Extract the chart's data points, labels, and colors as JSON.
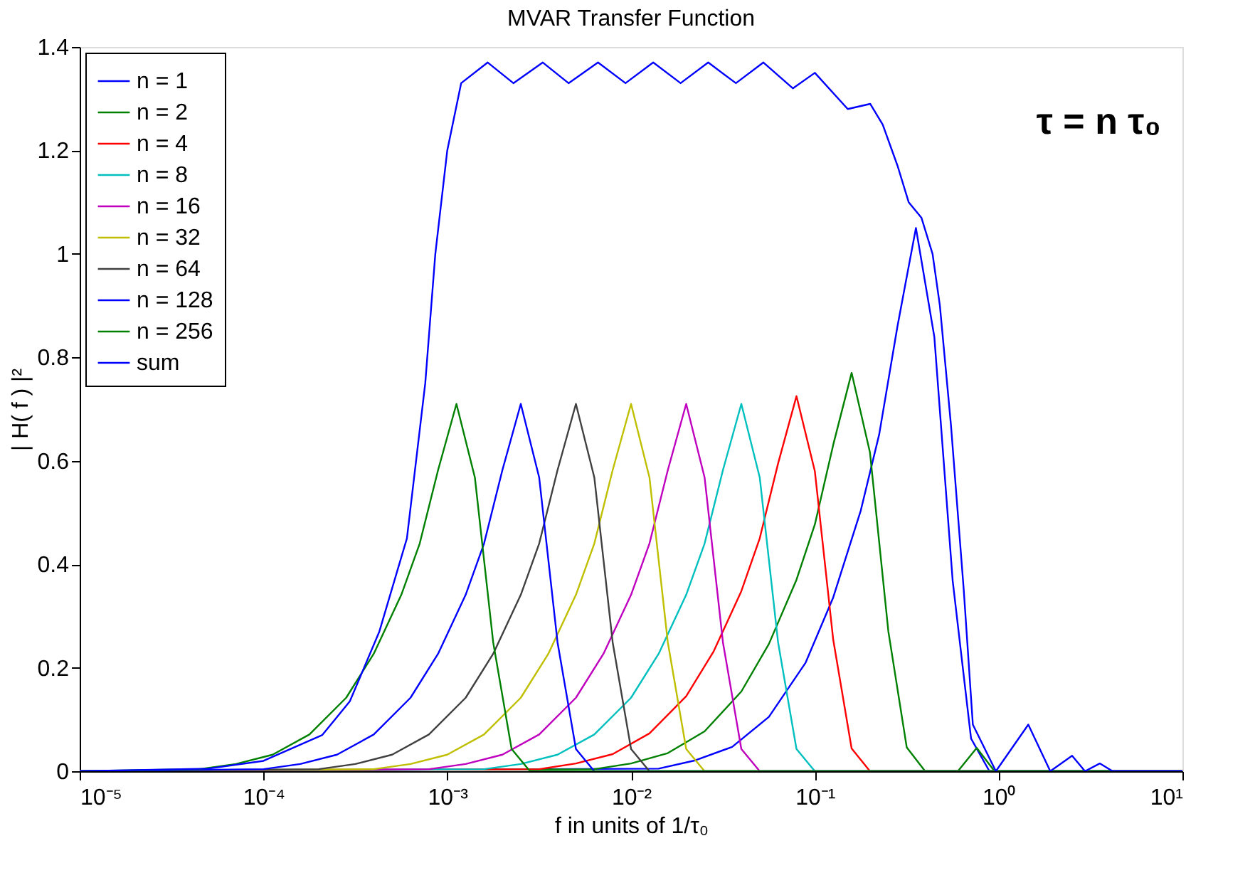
{
  "chart_data": {
    "type": "line",
    "title": "MVAR Transfer Function",
    "xlabel": "f in units of 1/τ₀",
    "ylabel": "| H( f ) |²",
    "annotations": [
      "τ = n τ₀"
    ],
    "log": "x",
    "grid": false,
    "legend": "top left",
    "marker": "none",
    "line_style": "solid",
    "xlim": [
      1e-05,
      10
    ],
    "ylim": [
      0,
      1.4
    ],
    "xticks": [
      {
        "value": 1e-05,
        "label": "10⁻⁵"
      },
      {
        "value": 0.0001,
        "label": "10⁻⁴"
      },
      {
        "value": 0.001,
        "label": "10⁻³"
      },
      {
        "value": 0.01,
        "label": "10⁻²"
      },
      {
        "value": 0.1,
        "label": "10⁻¹"
      },
      {
        "value": 1,
        "label": "10⁰"
      },
      {
        "value": 10,
        "label": "10¹"
      }
    ],
    "yticks": [
      0,
      0.2,
      0.4,
      0.6,
      0.8,
      1,
      1.2,
      1.4
    ],
    "series": [
      {
        "name": "n = 1",
        "color": "#0000ff",
        "x": [
          1e-05,
          0.01413,
          0.02239,
          0.03548,
          0.05623,
          0.08913,
          0.1259,
          0.1778,
          0.2239,
          0.2818,
          0.3548,
          0.4467,
          0.5623,
          0.7079,
          0.8913,
          10
        ],
        "values": [
          0,
          0.005,
          0.021,
          0.047,
          0.105,
          0.21,
          0.336,
          0.504,
          0.651,
          0.861,
          1.05,
          0.84,
          0.368,
          0.063,
          0,
          0
        ]
      },
      {
        "name": "n = 2",
        "color": "#008000",
        "x": [
          1e-05,
          0.00631,
          0.01,
          0.01585,
          0.02512,
          0.03981,
          0.05623,
          0.07943,
          0.1,
          0.1259,
          0.1585,
          0.1995,
          0.2512,
          0.3162,
          0.3981,
          0.6,
          0.76,
          0.95,
          10
        ],
        "values": [
          0,
          0.004,
          0.015,
          0.035,
          0.077,
          0.154,
          0.246,
          0.37,
          0.477,
          0.631,
          0.77,
          0.616,
          0.27,
          0.046,
          0,
          0,
          0.045,
          0,
          0
        ]
      },
      {
        "name": "n = 4",
        "color": "#ff0000",
        "x": [
          1e-05,
          0.003162,
          0.005012,
          0.007943,
          0.01259,
          0.01995,
          0.02818,
          0.03981,
          0.05012,
          0.0631,
          0.07943,
          0.1,
          0.1259,
          0.1585,
          0.1995,
          10
        ],
        "values": [
          0,
          0.004,
          0.015,
          0.033,
          0.073,
          0.145,
          0.232,
          0.348,
          0.45,
          0.595,
          0.725,
          0.58,
          0.254,
          0.044,
          0,
          0
        ]
      },
      {
        "name": "n = 8",
        "color": "#00bfbf",
        "x": [
          1e-05,
          0.001585,
          0.002512,
          0.003981,
          0.00631,
          0.01,
          0.01413,
          0.01995,
          0.02512,
          0.03162,
          0.03981,
          0.05012,
          0.0631,
          0.07943,
          0.1,
          10
        ],
        "values": [
          0,
          0.004,
          0.014,
          0.032,
          0.071,
          0.142,
          0.227,
          0.341,
          0.44,
          0.582,
          0.71,
          0.568,
          0.249,
          0.043,
          0,
          0
        ]
      },
      {
        "name": "n = 16",
        "color": "#bf00bf",
        "x": [
          1e-05,
          0.0007943,
          0.001259,
          0.001995,
          0.003162,
          0.005012,
          0.007079,
          0.01,
          0.01259,
          0.01585,
          0.01995,
          0.02512,
          0.03162,
          0.03981,
          0.05012,
          10
        ],
        "values": [
          0,
          0.004,
          0.014,
          0.032,
          0.071,
          0.142,
          0.227,
          0.341,
          0.44,
          0.582,
          0.71,
          0.568,
          0.249,
          0.043,
          0,
          0
        ]
      },
      {
        "name": "n = 32",
        "color": "#bfbf00",
        "x": [
          1e-05,
          0.0003981,
          0.000631,
          0.001,
          0.001585,
          0.002512,
          0.003548,
          0.005012,
          0.00631,
          0.007943,
          0.01,
          0.01259,
          0.01585,
          0.01995,
          0.02512,
          10
        ],
        "values": [
          0,
          0.004,
          0.014,
          0.032,
          0.071,
          0.142,
          0.227,
          0.341,
          0.44,
          0.582,
          0.71,
          0.568,
          0.249,
          0.043,
          0,
          0
        ]
      },
      {
        "name": "n = 64",
        "color": "#404040",
        "x": [
          1e-05,
          0.0001995,
          0.0003162,
          0.0005012,
          0.0007943,
          0.001259,
          0.001778,
          0.002512,
          0.003162,
          0.003981,
          0.005012,
          0.00631,
          0.007943,
          0.01,
          0.01259,
          10
        ],
        "values": [
          0,
          0.004,
          0.014,
          0.032,
          0.071,
          0.142,
          0.227,
          0.341,
          0.44,
          0.582,
          0.71,
          0.568,
          0.249,
          0.043,
          0,
          0
        ]
      },
      {
        "name": "n = 128",
        "color": "#0000ff",
        "x": [
          1e-05,
          0.0001,
          0.0001585,
          0.0002512,
          0.0003981,
          0.000631,
          0.0008913,
          0.001259,
          0.001585,
          0.001995,
          0.002512,
          0.003162,
          0.003981,
          0.005012,
          0.00631,
          10
        ],
        "values": [
          0,
          0.004,
          0.014,
          0.032,
          0.071,
          0.142,
          0.227,
          0.341,
          0.44,
          0.582,
          0.71,
          0.568,
          0.249,
          0.043,
          0,
          0
        ]
      },
      {
        "name": "n = 256",
        "color": "#008000",
        "x": [
          1e-05,
          4.467e-05,
          7.079e-05,
          0.0001122,
          0.0001778,
          0.0002818,
          0.0003981,
          0.0005623,
          0.0007079,
          0.0008913,
          0.001122,
          0.001413,
          0.001778,
          0.002239,
          0.002818,
          10
        ],
        "values": [
          0,
          0.004,
          0.014,
          0.032,
          0.071,
          0.142,
          0.227,
          0.341,
          0.44,
          0.582,
          0.71,
          0.568,
          0.249,
          0.043,
          0,
          0
        ]
      },
      {
        "name": "sum",
        "color": "#0000ff",
        "x": [
          1e-05,
          5e-05,
          0.0001,
          0.000209,
          0.000295,
          0.000427,
          0.000603,
          0.000759,
          0.000861,
          0.001,
          0.00119,
          0.00166,
          0.00229,
          0.00331,
          0.00457,
          0.00661,
          0.00933,
          0.0132,
          0.0186,
          0.0263,
          0.0372,
          0.0525,
          0.0759,
          0.1,
          0.151,
          0.2,
          0.234,
          0.282,
          0.324,
          0.38,
          0.437,
          0.479,
          0.55,
          0.646,
          0.724,
          0.966,
          1.45,
          1.91,
          2.51,
          2.95,
          3.55,
          4.17,
          10
        ],
        "values": [
          0,
          0.005,
          0.02,
          0.07,
          0.135,
          0.27,
          0.45,
          0.75,
          1.0,
          1.2,
          1.33,
          1.37,
          1.33,
          1.37,
          1.33,
          1.37,
          1.33,
          1.37,
          1.33,
          1.37,
          1.33,
          1.37,
          1.32,
          1.35,
          1.28,
          1.29,
          1.25,
          1.17,
          1.1,
          1.07,
          1.0,
          0.9,
          0.67,
          0.35,
          0.09,
          0,
          0.09,
          0,
          0.03,
          0,
          0.015,
          0,
          0
        ]
      }
    ]
  }
}
